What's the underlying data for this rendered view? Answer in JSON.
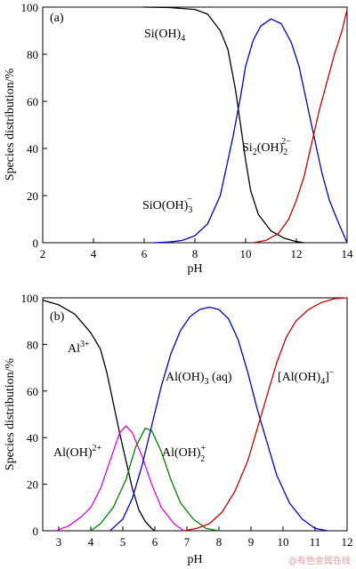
{
  "watermark": "@有色金属在线",
  "chart_data": [
    {
      "type": "line",
      "panel_label": "(a)",
      "xlabel": "pH",
      "ylabel": "Species distribution/%",
      "xlim": [
        2,
        14
      ],
      "ylim": [
        0,
        100
      ],
      "xticks": [
        2,
        4,
        6,
        8,
        10,
        12,
        14
      ],
      "yticks": [
        0,
        20,
        40,
        60,
        80,
        100
      ],
      "grid": false,
      "series": [
        {
          "name": "Si(OH)4",
          "label": {
            "base": "Si(OH)",
            "sub": "4",
            "sup": ""
          },
          "color": "#000000",
          "points": [
            [
              6,
              100
            ],
            [
              7,
              99.8
            ],
            [
              8,
              99
            ],
            [
              8.5,
              97
            ],
            [
              9,
              90
            ],
            [
              9.3,
              82
            ],
            [
              9.6,
              65
            ],
            [
              9.8,
              50
            ],
            [
              10,
              35
            ],
            [
              10.2,
              22
            ],
            [
              10.5,
              12
            ],
            [
              11,
              5
            ],
            [
              11.5,
              2
            ],
            [
              12,
              0.5
            ],
            [
              12.3,
              0
            ]
          ]
        },
        {
          "name": "SiO(OH)3-",
          "label": {
            "base": "SiO(OH)",
            "sub": "3",
            "sup": "−"
          },
          "color": "#0000c8",
          "points": [
            [
              6.4,
              0
            ],
            [
              7,
              0.3
            ],
            [
              7.5,
              1
            ],
            [
              8,
              3
            ],
            [
              8.5,
              8
            ],
            [
              9,
              20
            ],
            [
              9.5,
              45
            ],
            [
              9.8,
              62
            ],
            [
              10,
              75
            ],
            [
              10.3,
              86
            ],
            [
              10.6,
              92
            ],
            [
              11,
              95
            ],
            [
              11.4,
              93
            ],
            [
              11.8,
              85
            ],
            [
              12.1,
              75
            ],
            [
              12.4,
              60
            ],
            [
              12.7,
              45
            ],
            [
              13,
              30
            ],
            [
              13.3,
              18
            ],
            [
              13.6,
              10
            ],
            [
              13.8,
              5
            ],
            [
              14,
              0
            ]
          ]
        },
        {
          "name": "Si2(OH)2 2-",
          "label": {
            "base": "Si",
            "sub": "2",
            "mid": "(OH)",
            "sub2": "2",
            "sup": "2−"
          },
          "color": "#c80000",
          "points": [
            [
              10.3,
              0
            ],
            [
              10.8,
              1
            ],
            [
              11.3,
              4
            ],
            [
              11.7,
              10
            ],
            [
              12,
              18
            ],
            [
              12.3,
              28
            ],
            [
              12.6,
              42
            ],
            [
              12.9,
              56
            ],
            [
              13.2,
              68
            ],
            [
              13.5,
              80
            ],
            [
              13.8,
              90
            ],
            [
              14,
              99
            ]
          ]
        }
      ]
    },
    {
      "type": "line",
      "panel_label": "(b)",
      "xlabel": "pH",
      "ylabel": "Species distribution/%",
      "xlim": [
        2.5,
        12
      ],
      "ylim": [
        0,
        100
      ],
      "xticks": [
        3,
        4,
        5,
        6,
        7,
        8,
        9,
        10,
        11,
        12
      ],
      "yticks": [
        0,
        20,
        40,
        60,
        80,
        100
      ],
      "grid": false,
      "series": [
        {
          "name": "Al3+",
          "label": {
            "base": "Al",
            "sub": "",
            "sup": "3+"
          },
          "color": "#000000",
          "points": [
            [
              2.5,
              99
            ],
            [
              3,
              97
            ],
            [
              3.5,
              93
            ],
            [
              4,
              85
            ],
            [
              4.3,
              78
            ],
            [
              4.5,
              68
            ],
            [
              4.7,
              55
            ],
            [
              4.9,
              42
            ],
            [
              5.1,
              30
            ],
            [
              5.3,
              18
            ],
            [
              5.5,
              9
            ],
            [
              5.7,
              4
            ],
            [
              5.9,
              1
            ],
            [
              6,
              0
            ]
          ]
        },
        {
          "name": "Al(OH)2+",
          "label": {
            "base": "Al(OH)",
            "sub": "",
            "sup": "2+"
          },
          "color": "#e600e6",
          "points": [
            [
              2.9,
              0
            ],
            [
              3.3,
              2
            ],
            [
              3.7,
              6
            ],
            [
              4,
              10
            ],
            [
              4.3,
              18
            ],
            [
              4.6,
              30
            ],
            [
              4.9,
              42
            ],
            [
              5.1,
              45
            ],
            [
              5.3,
              42
            ],
            [
              5.6,
              32
            ],
            [
              5.9,
              20
            ],
            [
              6.2,
              10
            ],
            [
              6.6,
              3
            ],
            [
              6.9,
              0
            ]
          ]
        },
        {
          "name": "Al(OH)2 +",
          "label": {
            "base": "Al(OH)",
            "sub": "2",
            "sup": "+"
          },
          "color": "#008000",
          "points": [
            [
              4,
              0
            ],
            [
              4.3,
              3
            ],
            [
              4.7,
              10
            ],
            [
              5.1,
              22
            ],
            [
              5.4,
              36
            ],
            [
              5.7,
              44
            ],
            [
              5.9,
              43
            ],
            [
              6.2,
              34
            ],
            [
              6.5,
              22
            ],
            [
              6.8,
              12
            ],
            [
              7.2,
              5
            ],
            [
              7.6,
              1
            ],
            [
              8,
              0
            ]
          ]
        },
        {
          "name": "Al(OH)3 (aq)",
          "label": {
            "base": "Al(OH)",
            "sub": "3",
            "sup": "",
            "tail": " (aq)"
          },
          "color": "#0000c8",
          "points": [
            [
              4.6,
              0
            ],
            [
              5,
              5
            ],
            [
              5.3,
              14
            ],
            [
              5.6,
              28
            ],
            [
              5.9,
              45
            ],
            [
              6.2,
              62
            ],
            [
              6.5,
              76
            ],
            [
              6.8,
              86
            ],
            [
              7.1,
              92
            ],
            [
              7.4,
              95
            ],
            [
              7.7,
              96
            ],
            [
              8,
              95
            ],
            [
              8.3,
              91
            ],
            [
              8.6,
              82
            ],
            [
              8.9,
              68
            ],
            [
              9.2,
              52
            ],
            [
              9.5,
              38
            ],
            [
              9.8,
              24
            ],
            [
              10.2,
              12
            ],
            [
              10.6,
              5
            ],
            [
              11,
              1
            ],
            [
              11.4,
              0
            ]
          ]
        },
        {
          "name": "[Al(OH)4]-",
          "label": {
            "base": "[Al(OH)",
            "sub": "4",
            "sup": "−",
            "close": "]"
          },
          "color": "#c80000",
          "points": [
            [
              6.9,
              0
            ],
            [
              7.3,
              1
            ],
            [
              7.7,
              3
            ],
            [
              8.1,
              8
            ],
            [
              8.5,
              17
            ],
            [
              8.9,
              30
            ],
            [
              9.2,
              44
            ],
            [
              9.5,
              58
            ],
            [
              9.8,
              72
            ],
            [
              10.1,
              83
            ],
            [
              10.4,
              90
            ],
            [
              10.8,
              95
            ],
            [
              11.2,
              98
            ],
            [
              11.6,
              99.6
            ],
            [
              12,
              100
            ]
          ]
        }
      ]
    }
  ]
}
